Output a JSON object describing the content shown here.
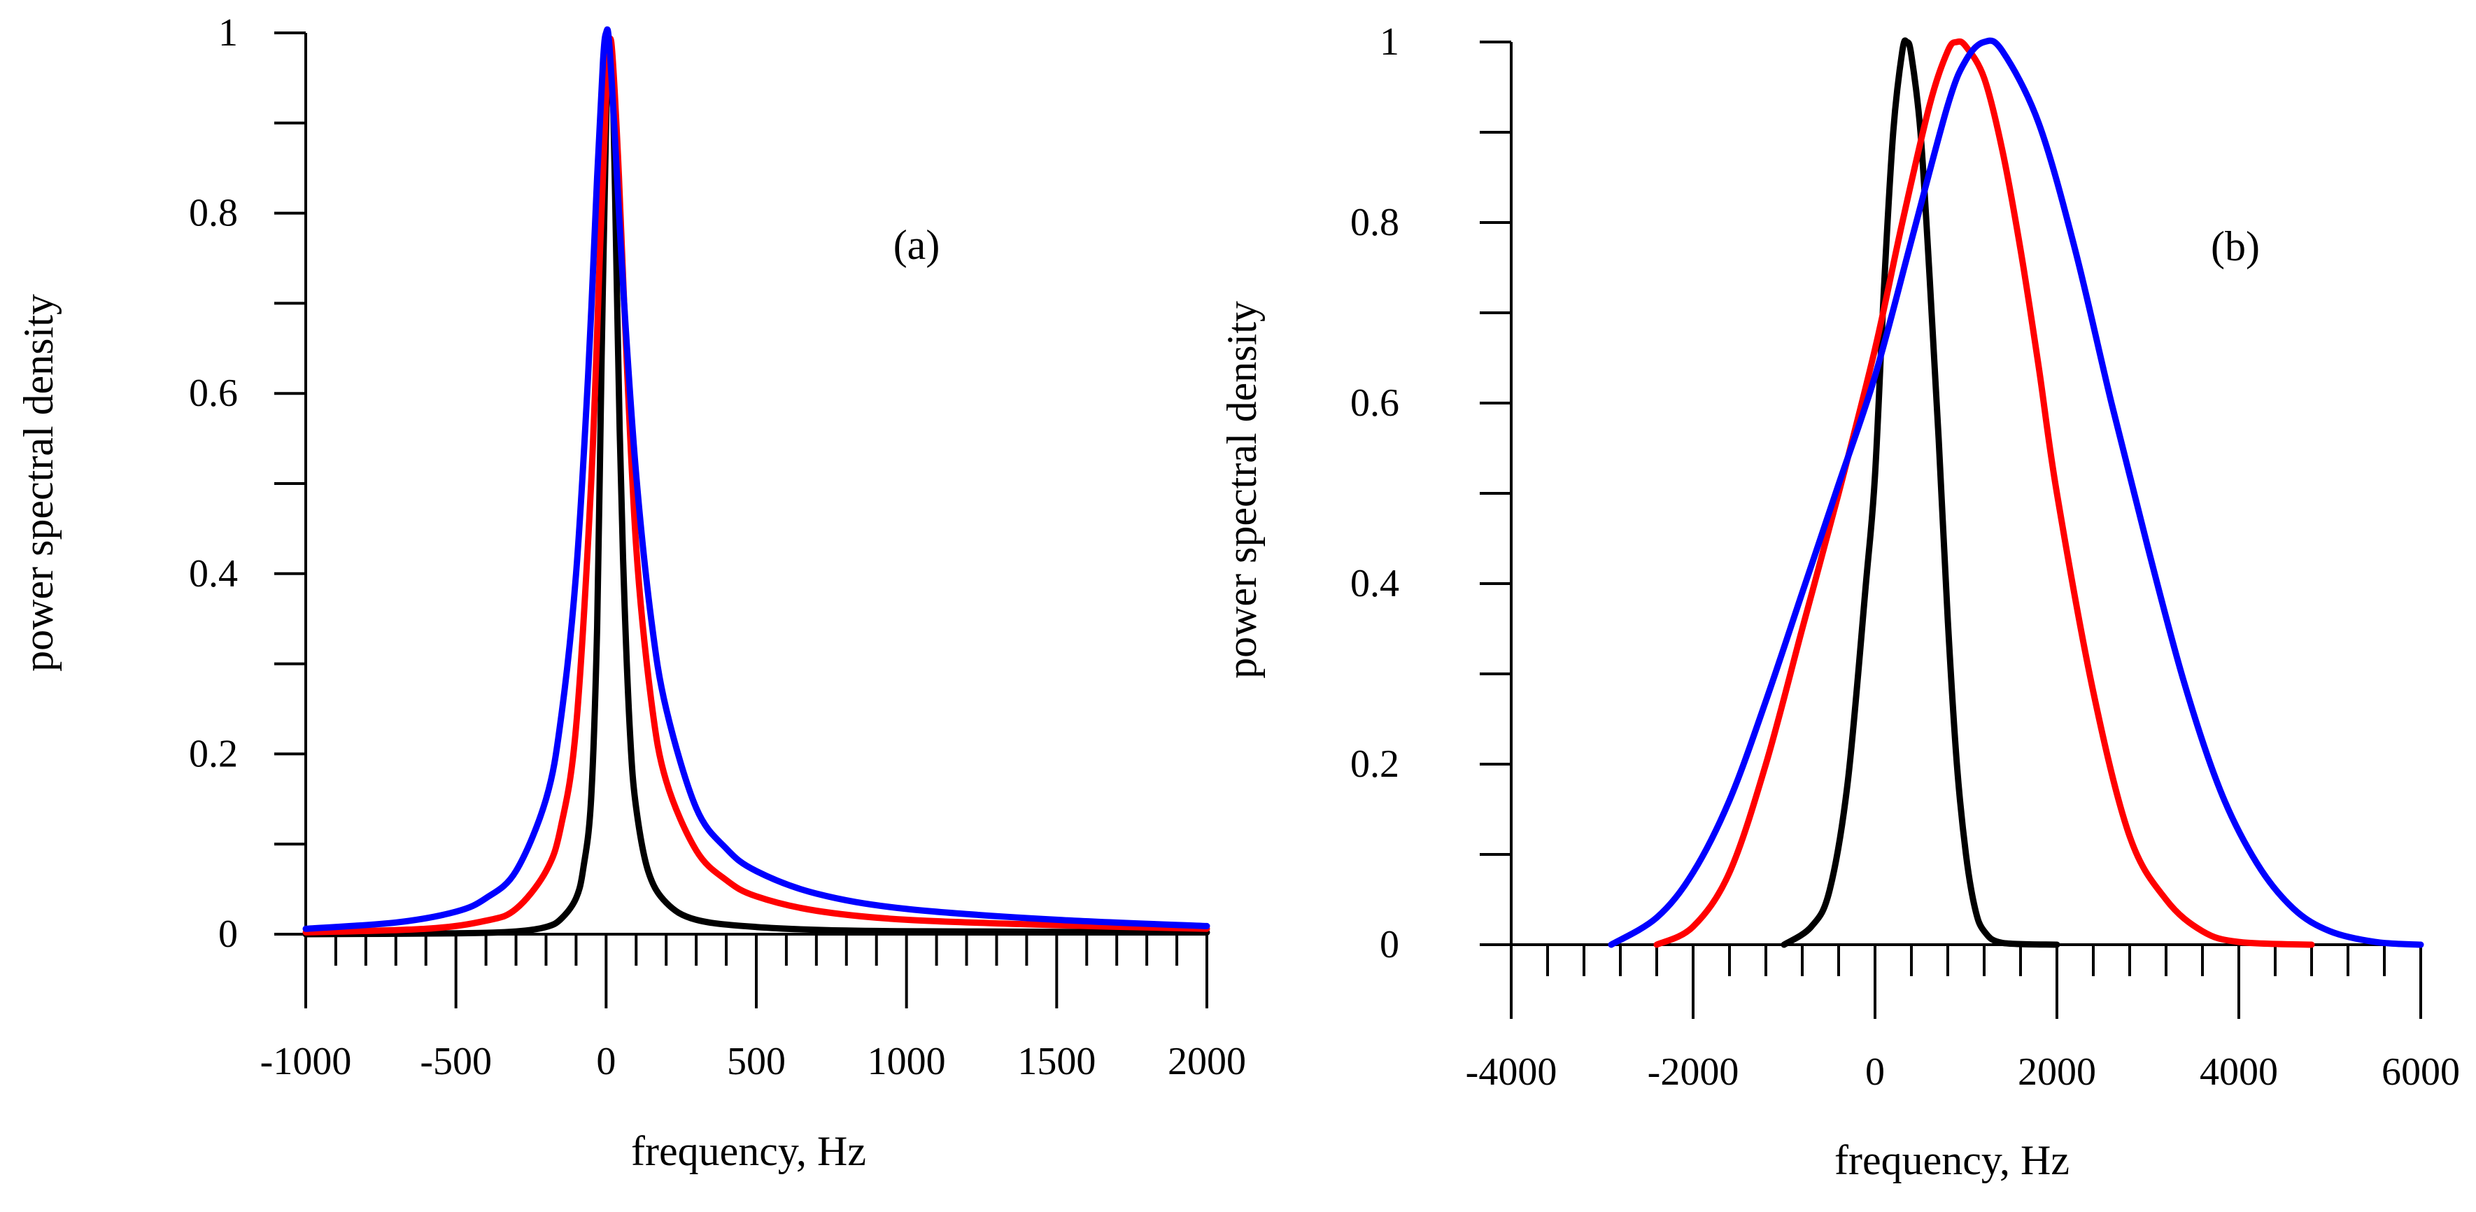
{
  "chart_data": [
    {
      "type": "line",
      "panel_label": "(a)",
      "xlabel": "frequency, Hz",
      "ylabel": "power spectral density",
      "xlim": [
        -1000,
        2000
      ],
      "ylim": [
        0,
        1
      ],
      "x_major_ticks": [
        -1000,
        -500,
        0,
        500,
        1000,
        1500,
        2000
      ],
      "x_tick_labels": [
        "-1000",
        "-500",
        "0",
        "500",
        "1000",
        "1500",
        "2000"
      ],
      "x_minor_step": 100,
      "y_major_ticks": [
        0,
        0.2,
        0.4,
        0.6,
        0.8,
        1
      ],
      "y_tick_labels": [
        "0",
        "0.2",
        "0.4",
        "0.6",
        "0.8",
        "1"
      ],
      "y_minor_step": 0.1,
      "series": [
        {
          "name": "black",
          "color": "#000000",
          "x": [
            -1000,
            -500,
            -300,
            -200,
            -150,
            -100,
            -75,
            -50,
            -30,
            -15,
            0,
            10,
            20,
            30,
            45,
            60,
            80,
            100,
            140,
            200,
            300,
            500,
            800,
            1200,
            2000
          ],
          "y": [
            0.0,
            0.001,
            0.003,
            0.008,
            0.017,
            0.04,
            0.075,
            0.15,
            0.34,
            0.64,
            0.9,
            0.99,
            0.96,
            0.82,
            0.56,
            0.38,
            0.22,
            0.14,
            0.07,
            0.035,
            0.016,
            0.008,
            0.004,
            0.003,
            0.002
          ]
        },
        {
          "name": "red",
          "color": "#ff0000",
          "x": [
            -1000,
            -600,
            -400,
            -300,
            -200,
            -150,
            -100,
            -50,
            -20,
            0,
            10,
            20,
            40,
            60,
            100,
            150,
            200,
            300,
            400,
            500,
            700,
            1000,
            1500,
            2000
          ],
          "y": [
            0.002,
            0.006,
            0.015,
            0.028,
            0.07,
            0.12,
            0.23,
            0.5,
            0.76,
            0.93,
            0.985,
            0.98,
            0.86,
            0.7,
            0.43,
            0.26,
            0.17,
            0.093,
            0.06,
            0.042,
            0.026,
            0.016,
            0.01,
            0.006
          ]
        },
        {
          "name": "blue",
          "color": "#0000ff",
          "x": [
            -1000,
            -700,
            -500,
            -400,
            -300,
            -200,
            -150,
            -100,
            -60,
            -30,
            -10,
            0,
            10,
            30,
            60,
            100,
            150,
            200,
            300,
            400,
            500,
            700,
            1000,
            1500,
            2000
          ],
          "y": [
            0.006,
            0.013,
            0.025,
            0.04,
            0.07,
            0.15,
            0.24,
            0.4,
            0.62,
            0.84,
            0.97,
            1.0,
            0.99,
            0.88,
            0.7,
            0.51,
            0.35,
            0.25,
            0.14,
            0.095,
            0.07,
            0.045,
            0.028,
            0.016,
            0.009
          ]
        }
      ]
    },
    {
      "type": "line",
      "panel_label": "(b)",
      "xlabel": "frequency, Hz",
      "ylabel": "power spectral density",
      "xlim": [
        -4000,
        6000
      ],
      "ylim": [
        0,
        1
      ],
      "x_major_ticks": [
        -4000,
        -2000,
        0,
        2000,
        4000,
        6000
      ],
      "x_tick_labels": [
        "-4000",
        "-2000",
        "0",
        "2000",
        "4000",
        "6000"
      ],
      "x_minor_step": 400,
      "y_major_ticks": [
        0,
        0.2,
        0.4,
        0.6,
        0.8,
        1
      ],
      "y_tick_labels": [
        "0",
        "0.2",
        "0.4",
        "0.6",
        "0.8",
        "1"
      ],
      "y_minor_step": 0.1,
      "series": [
        {
          "name": "black",
          "color": "#000000",
          "x": [
            -1000,
            -700,
            -500,
            -300,
            -100,
            0,
            100,
            200,
            300,
            350,
            400,
            500,
            600,
            700,
            800,
            900,
            1000,
            1100,
            1200,
            1400,
            2000
          ],
          "y": [
            0.0,
            0.02,
            0.06,
            0.18,
            0.4,
            0.52,
            0.73,
            0.9,
            0.99,
            1.0,
            0.985,
            0.9,
            0.74,
            0.56,
            0.36,
            0.2,
            0.1,
            0.04,
            0.015,
            0.002,
            0.0
          ]
        },
        {
          "name": "red",
          "color": "#ff0000",
          "x": [
            -2400,
            -2000,
            -1600,
            -1200,
            -800,
            -400,
            0,
            300,
            600,
            800,
            900,
            1000,
            1200,
            1400,
            1600,
            1800,
            2000,
            2400,
            2800,
            3200,
            3600,
            4000,
            4800
          ],
          "y": [
            0.0,
            0.02,
            0.08,
            0.2,
            0.35,
            0.5,
            0.66,
            0.8,
            0.93,
            0.99,
            1.0,
            0.995,
            0.96,
            0.88,
            0.77,
            0.64,
            0.5,
            0.28,
            0.12,
            0.05,
            0.015,
            0.003,
            0.0
          ]
        },
        {
          "name": "blue",
          "color": "#0000ff",
          "x": [
            -2900,
            -2400,
            -2000,
            -1600,
            -1200,
            -800,
            -400,
            0,
            400,
            800,
            1000,
            1200,
            1400,
            1800,
            2200,
            2600,
            3000,
            3400,
            3800,
            4200,
            4600,
            5000,
            5500,
            6000
          ],
          "y": [
            0.0,
            0.03,
            0.08,
            0.16,
            0.27,
            0.39,
            0.51,
            0.63,
            0.78,
            0.93,
            0.98,
            1.0,
            0.99,
            0.91,
            0.77,
            0.6,
            0.44,
            0.29,
            0.17,
            0.09,
            0.04,
            0.015,
            0.003,
            0.0
          ]
        }
      ]
    }
  ]
}
